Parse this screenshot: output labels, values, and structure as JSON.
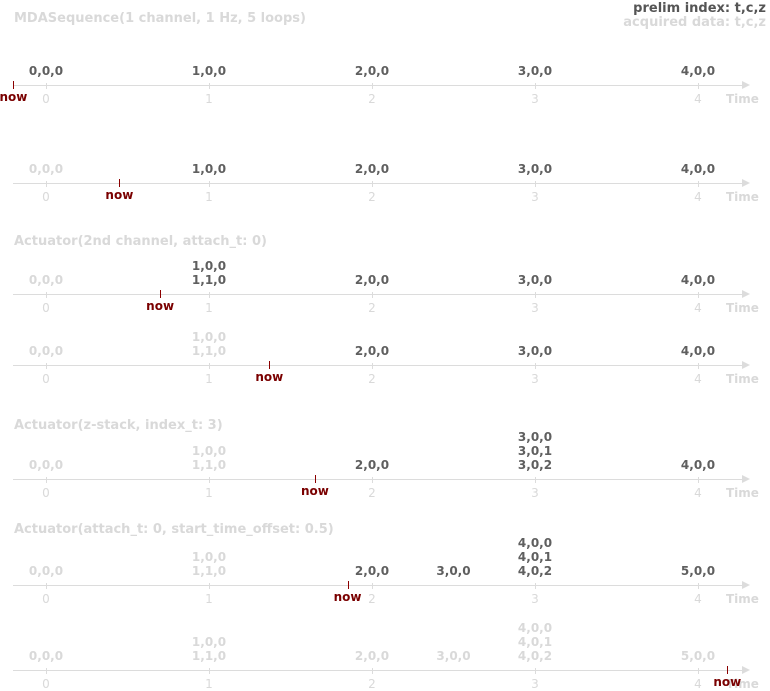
{
  "header": {
    "prelim_label": "prelim index: t,c,z",
    "acquired_label": "acquired data: t,c,z",
    "prelim_color": "#555555",
    "acquired_color": "#d9d9d9"
  },
  "colors": {
    "active": "#5f5f5f",
    "faded": "#d9d9d9",
    "now": "#7a0000",
    "axis": "#dcdcdc"
  },
  "axis_text": "Time",
  "now_text": "now",
  "ticks": [
    "0",
    "1",
    "2",
    "3",
    "4"
  ],
  "sections": [
    {
      "title": "MDASequence(1 channel, 1 Hz, 5 loops)"
    },
    {
      "title": "Actuator(2nd channel, attach_t: 0)"
    },
    {
      "title": "Actuator(z-stack, index_t: 3)"
    },
    {
      "title": "Actuator(attach_t: 0, start_time_offset: 0.5)"
    }
  ],
  "rows": [
    {
      "now_t": -0.2,
      "events": [
        {
          "t": 0,
          "labels": [
            "0,0,0"
          ],
          "acquired": false
        },
        {
          "t": 1,
          "labels": [
            "1,0,0"
          ],
          "acquired": false
        },
        {
          "t": 2,
          "labels": [
            "2,0,0"
          ],
          "acquired": false
        },
        {
          "t": 3,
          "labels": [
            "3,0,0"
          ],
          "acquired": false
        },
        {
          "t": 4,
          "labels": [
            "4,0,0"
          ],
          "acquired": false
        }
      ]
    },
    {
      "now_t": 0.45,
      "events": [
        {
          "t": 0,
          "labels": [
            "0,0,0"
          ],
          "acquired": true
        },
        {
          "t": 1,
          "labels": [
            "1,0,0"
          ],
          "acquired": false
        },
        {
          "t": 2,
          "labels": [
            "2,0,0"
          ],
          "acquired": false
        },
        {
          "t": 3,
          "labels": [
            "3,0,0"
          ],
          "acquired": false
        },
        {
          "t": 4,
          "labels": [
            "4,0,0"
          ],
          "acquired": false
        }
      ]
    },
    {
      "now_t": 0.7,
      "events": [
        {
          "t": 0,
          "labels": [
            "0,0,0"
          ],
          "acquired": true
        },
        {
          "t": 1,
          "labels": [
            "1,0,0",
            "1,1,0"
          ],
          "acquired": false
        },
        {
          "t": 2,
          "labels": [
            "2,0,0"
          ],
          "acquired": false
        },
        {
          "t": 3,
          "labels": [
            "3,0,0"
          ],
          "acquired": false
        },
        {
          "t": 4,
          "labels": [
            "4,0,0"
          ],
          "acquired": false
        }
      ]
    },
    {
      "now_t": 1.37,
      "events": [
        {
          "t": 0,
          "labels": [
            "0,0,0"
          ],
          "acquired": true
        },
        {
          "t": 1,
          "labels": [
            "1,0,0",
            "1,1,0"
          ],
          "acquired": true
        },
        {
          "t": 2,
          "labels": [
            "2,0,0"
          ],
          "acquired": false
        },
        {
          "t": 3,
          "labels": [
            "3,0,0"
          ],
          "acquired": false
        },
        {
          "t": 4,
          "labels": [
            "4,0,0"
          ],
          "acquired": false
        }
      ]
    },
    {
      "now_t": 1.65,
      "events": [
        {
          "t": 0,
          "labels": [
            "0,0,0"
          ],
          "acquired": true
        },
        {
          "t": 1,
          "labels": [
            "1,0,0",
            "1,1,0"
          ],
          "acquired": true
        },
        {
          "t": 2,
          "labels": [
            "2,0,0"
          ],
          "acquired": false
        },
        {
          "t": 3,
          "labels": [
            "3,0,0",
            "3,0,1",
            "3,0,2"
          ],
          "acquired": false
        },
        {
          "t": 4,
          "labels": [
            "4,0,0"
          ],
          "acquired": false
        }
      ]
    },
    {
      "now_t": 1.85,
      "events": [
        {
          "t": 0,
          "labels": [
            "0,0,0"
          ],
          "acquired": true
        },
        {
          "t": 1,
          "labels": [
            "1,0,0",
            "1,1,0"
          ],
          "acquired": true
        },
        {
          "t": 2,
          "labels": [
            "2,0,0"
          ],
          "acquired": false
        },
        {
          "t": 2.5,
          "labels": [
            "3,0,0"
          ],
          "acquired": false
        },
        {
          "t": 3,
          "labels": [
            "4,0,0",
            "4,0,1",
            "4,0,2"
          ],
          "acquired": false
        },
        {
          "t": 4,
          "labels": [
            "5,0,0"
          ],
          "acquired": false
        }
      ]
    },
    {
      "now_t": 4.18,
      "events": [
        {
          "t": 0,
          "labels": [
            "0,0,0"
          ],
          "acquired": true
        },
        {
          "t": 1,
          "labels": [
            "1,0,0",
            "1,1,0"
          ],
          "acquired": true
        },
        {
          "t": 2,
          "labels": [
            "2,0,0"
          ],
          "acquired": true
        },
        {
          "t": 2.5,
          "labels": [
            "3,0,0"
          ],
          "acquired": true
        },
        {
          "t": 3,
          "labels": [
            "4,0,0",
            "4,0,1",
            "4,0,2"
          ],
          "acquired": true
        },
        {
          "t": 4,
          "labels": [
            "5,0,0"
          ],
          "acquired": true
        }
      ]
    }
  ]
}
